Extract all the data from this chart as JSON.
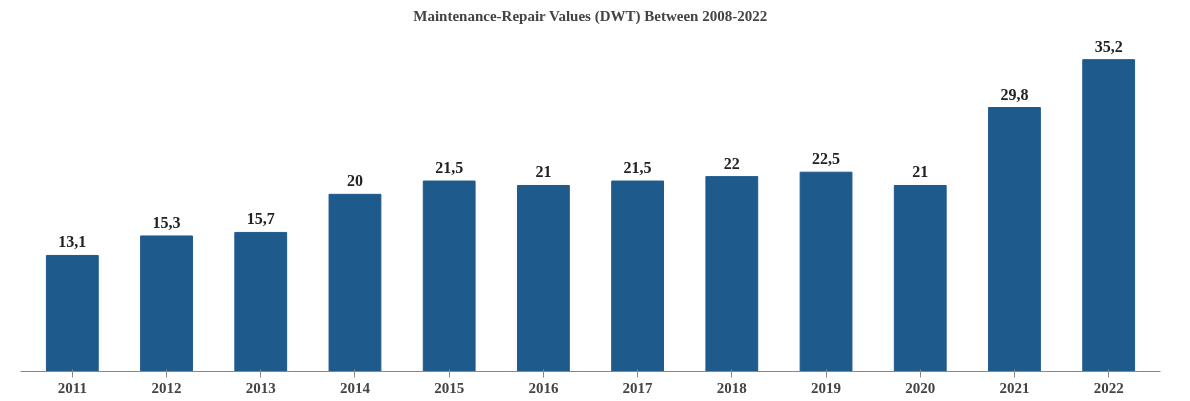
{
  "chart_data": {
    "type": "bar",
    "title": "Maintenance-Repair Values (DWT) Between 2008-2022",
    "categories": [
      "2011",
      "2012",
      "2013",
      "2014",
      "2015",
      "2016",
      "2017",
      "2018",
      "2019",
      "2020",
      "2021",
      "2022"
    ],
    "values": [
      13.1,
      15.3,
      15.7,
      20,
      21.5,
      21,
      21.5,
      22,
      22.5,
      21,
      29.8,
      35.2
    ],
    "value_labels": [
      "13,1",
      "15,3",
      "15,7",
      "20",
      "21,5",
      "21",
      "21,5",
      "22",
      "22,5",
      "21",
      "29,8",
      "35,2"
    ],
    "color": "#1f5a8c",
    "grid": false
  }
}
